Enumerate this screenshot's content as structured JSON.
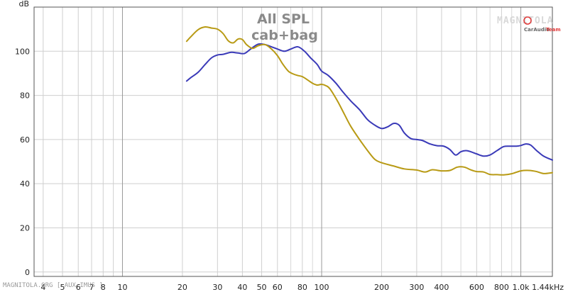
{
  "chart_data": {
    "type": "line",
    "title": "All SPL",
    "subtitle": "cab+bag",
    "ylabel": "dB",
    "xlabel": "",
    "x_scale": "log",
    "xlim": [
      3.6,
      1440
    ],
    "ylim": [
      -2,
      120
    ],
    "y_ticks": [
      0,
      20,
      40,
      60,
      80,
      100
    ],
    "x_ticks": [
      {
        "value": 4,
        "label": "4"
      },
      {
        "value": 5,
        "label": "5"
      },
      {
        "value": 6,
        "label": "6"
      },
      {
        "value": 7,
        "label": "7"
      },
      {
        "value": 8,
        "label": "8"
      },
      {
        "value": 9,
        "label": ""
      },
      {
        "value": 10,
        "label": "10"
      },
      {
        "value": 20,
        "label": "20"
      },
      {
        "value": 30,
        "label": "30"
      },
      {
        "value": 40,
        "label": "40"
      },
      {
        "value": 50,
        "label": "50"
      },
      {
        "value": 60,
        "label": "60"
      },
      {
        "value": 80,
        "label": "80"
      },
      {
        "value": 100,
        "label": "100"
      },
      {
        "value": 200,
        "label": "200"
      },
      {
        "value": 300,
        "label": "300"
      },
      {
        "value": 400,
        "label": "400"
      },
      {
        "value": 600,
        "label": "600"
      },
      {
        "value": 800,
        "label": "800"
      },
      {
        "value": 1000,
        "label": "1.0k"
      },
      {
        "value": 1440,
        "label": "1.44kHz"
      }
    ],
    "x_grid_minor": [
      70,
      90,
      500,
      700,
      900
    ],
    "grid": true,
    "series": [
      {
        "color": "#3a3ab8",
        "x": [
          21,
          22,
          24,
          26,
          28,
          30,
          32,
          35,
          38,
          41,
          44,
          48,
          52,
          56,
          60,
          65,
          70,
          76,
          82,
          88,
          95,
          100,
          108,
          118,
          128,
          140,
          155,
          170,
          185,
          200,
          215,
          230,
          245,
          260,
          280,
          300,
          320,
          350,
          380,
          410,
          440,
          470,
          500,
          530,
          560,
          600,
          650,
          700,
          760,
          820,
          880,
          950,
          1000,
          1060,
          1120,
          1200,
          1300,
          1440
        ],
        "y": [
          86.5,
          88,
          90.5,
          94,
          97,
          98.3,
          98.6,
          99.5,
          99.2,
          99,
          101,
          103.2,
          103,
          102,
          101,
          100,
          101,
          102,
          100,
          97,
          94,
          91,
          89,
          85.5,
          81.5,
          77.5,
          73.5,
          69,
          66.5,
          65,
          65.8,
          67.3,
          66.5,
          63,
          60.5,
          60,
          59.6,
          58,
          57.2,
          57,
          55.5,
          53,
          54.5,
          55,
          54.5,
          53.5,
          52.5,
          53,
          55,
          56.8,
          57,
          57,
          57.3,
          58,
          57.5,
          55,
          52.5,
          50.7
        ]
      },
      {
        "color": "#b89a14",
        "x": [
          21,
          22,
          24,
          26,
          28,
          30,
          32,
          34,
          36,
          38,
          40,
          42,
          45,
          48,
          52,
          56,
          60,
          64,
          68,
          72,
          76,
          80,
          85,
          90,
          95,
          100,
          105,
          110,
          120,
          130,
          140,
          155,
          170,
          185,
          200,
          230,
          260,
          300,
          330,
          360,
          400,
          440,
          480,
          520,
          560,
          600,
          650,
          700,
          760,
          820,
          900,
          1000,
          1100,
          1200,
          1300,
          1440
        ],
        "y": [
          104.5,
          106.5,
          109.8,
          111,
          110.5,
          110,
          108,
          104.7,
          103.8,
          105.5,
          105.3,
          103,
          101.3,
          102.5,
          103,
          101,
          98,
          94,
          91,
          89.7,
          89,
          88.5,
          87,
          85.5,
          84.7,
          85,
          84.4,
          83,
          77.5,
          71.5,
          66,
          60,
          55,
          51,
          49.5,
          48,
          46.7,
          46.2,
          45.3,
          46.3,
          45.8,
          46,
          47.5,
          47.5,
          46.3,
          45.5,
          45.3,
          44.2,
          44.1,
          44,
          44.5,
          45.8,
          46,
          45.5,
          44.6,
          45
        ]
      }
    ]
  },
  "watermark": {
    "brand": "MAGNITOLA",
    "sub_left": "CarAudio",
    "sub_right": "Team"
  },
  "footer": {
    "text": "MAGNITOLA.ORG [ AUX IMUS ]"
  }
}
